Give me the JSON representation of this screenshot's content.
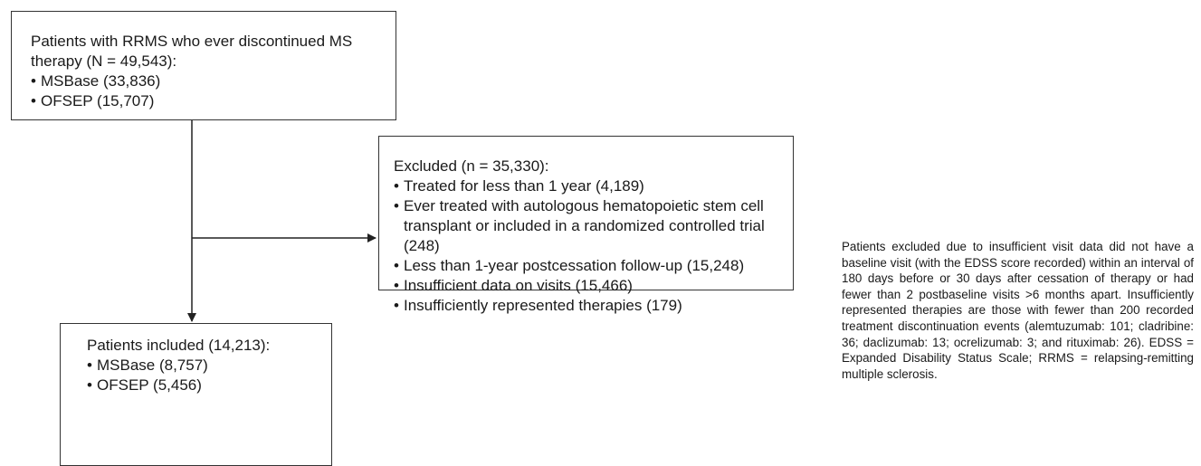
{
  "nodes": [
    {
      "label": "Patients with RRMS who ever discontinued MS therapy (N = 49,543):",
      "items": [
        "MSBase (33,836)",
        "OFSEP (15,707)"
      ]
    },
    {
      "label": "Excluded (n = 35,330):",
      "items": [
        "Treated for less than 1 year (4,189)",
        "Ever treated with autologous hematopoietic stem cell transplant or included in a randomized controlled trial (248)",
        "Less than 1-year postcessation follow-up (15,248)",
        "Insufficient data on visits (15,466)",
        "Insufficiently represented therapies (179)"
      ]
    },
    {
      "label": "Patients included (14,213):",
      "items": [
        "MSBase (8,757)",
        "OFSEP (5,456)"
      ]
    }
  ],
  "note": "Patients excluded due to insufficient visit data did not have a baseline visit (with the EDSS score recorded) within an interval of 180 days before or 30 days after cessation of therapy or had fewer than 2 postbaseline visits >6 months apart. Insufficiently represented therapies are those with fewer than 200 recorded treatment discontinuation events (alemtuzumab: 101; cladribine: 36; daclizumab: 13; ocrelizumab: 3; and rituximab: 26). EDSS = Expanded Disability Status Scale; RRMS = relapsing-remitting multiple sclerosis."
}
